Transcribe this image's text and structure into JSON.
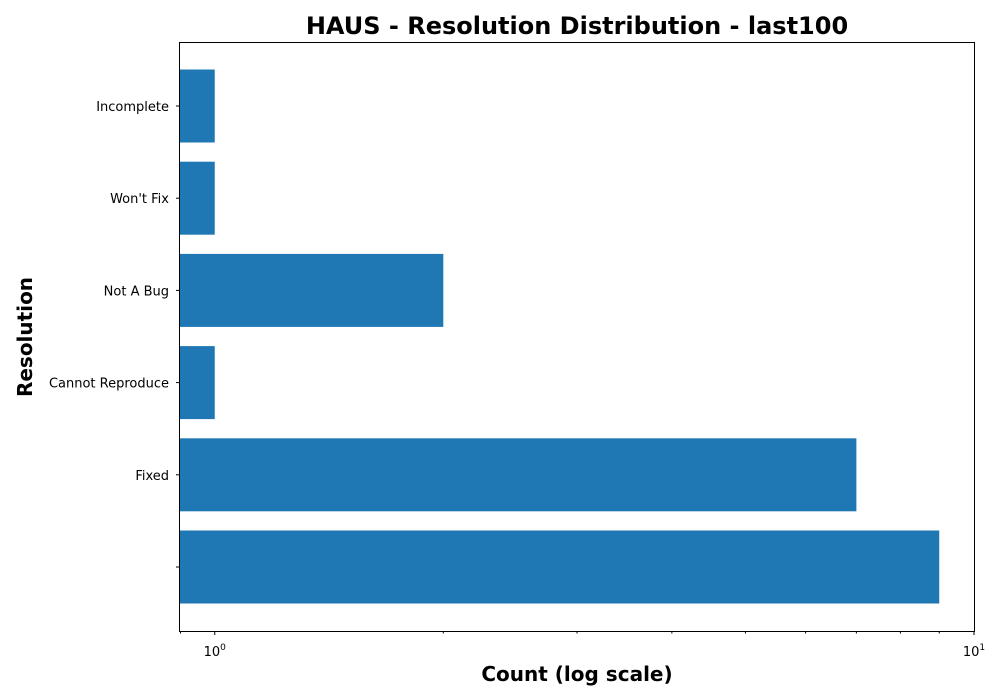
{
  "chart_data": {
    "type": "bar",
    "orientation": "horizontal",
    "title": "HAUS - Resolution Distribution - last100",
    "xlabel": "Count (log scale)",
    "ylabel": "Resolution",
    "x_scale": "log",
    "xlim": [
      0.9,
      10
    ],
    "categories": [
      "",
      "Fixed",
      "Cannot Reproduce",
      "Not A Bug",
      "Won't Fix",
      "Incomplete"
    ],
    "values": [
      9,
      7,
      1,
      2,
      1,
      1
    ],
    "x_ticks": [
      {
        "value": 1,
        "base": "10",
        "exp": "0"
      },
      {
        "value": 10,
        "base": "10",
        "exp": "1"
      }
    ],
    "bar_color": "#1f77b4",
    "grid": false,
    "legend": "none"
  }
}
